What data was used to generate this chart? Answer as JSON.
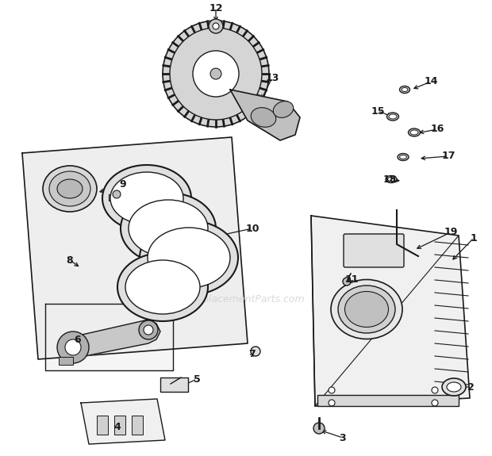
{
  "background_color": "#ffffff",
  "line_color": "#1a1a1a",
  "watermark": "eReplacementParts.com",
  "labels": [
    [
      1,
      597,
      300,
      568,
      330
    ],
    [
      2,
      593,
      488,
      572,
      488
    ],
    [
      3,
      432,
      552,
      402,
      542
    ],
    [
      4,
      148,
      538,
      162,
      533
    ],
    [
      5,
      248,
      478,
      222,
      490
    ],
    [
      6,
      98,
      428,
      115,
      438
    ],
    [
      7,
      318,
      447,
      320,
      443
    ],
    [
      8,
      88,
      328,
      102,
      338
    ],
    [
      9,
      155,
      233,
      122,
      243
    ],
    [
      10,
      318,
      288,
      272,
      298
    ],
    [
      11,
      443,
      352,
      437,
      358
    ],
    [
      12,
      272,
      10,
      272,
      30
    ],
    [
      13,
      343,
      98,
      328,
      128
    ],
    [
      14,
      543,
      103,
      518,
      113
    ],
    [
      15,
      476,
      140,
      497,
      148
    ],
    [
      16,
      551,
      163,
      525,
      168
    ],
    [
      17,
      565,
      197,
      527,
      200
    ],
    [
      18,
      491,
      227,
      507,
      228
    ],
    [
      19,
      568,
      293,
      522,
      315
    ]
  ]
}
